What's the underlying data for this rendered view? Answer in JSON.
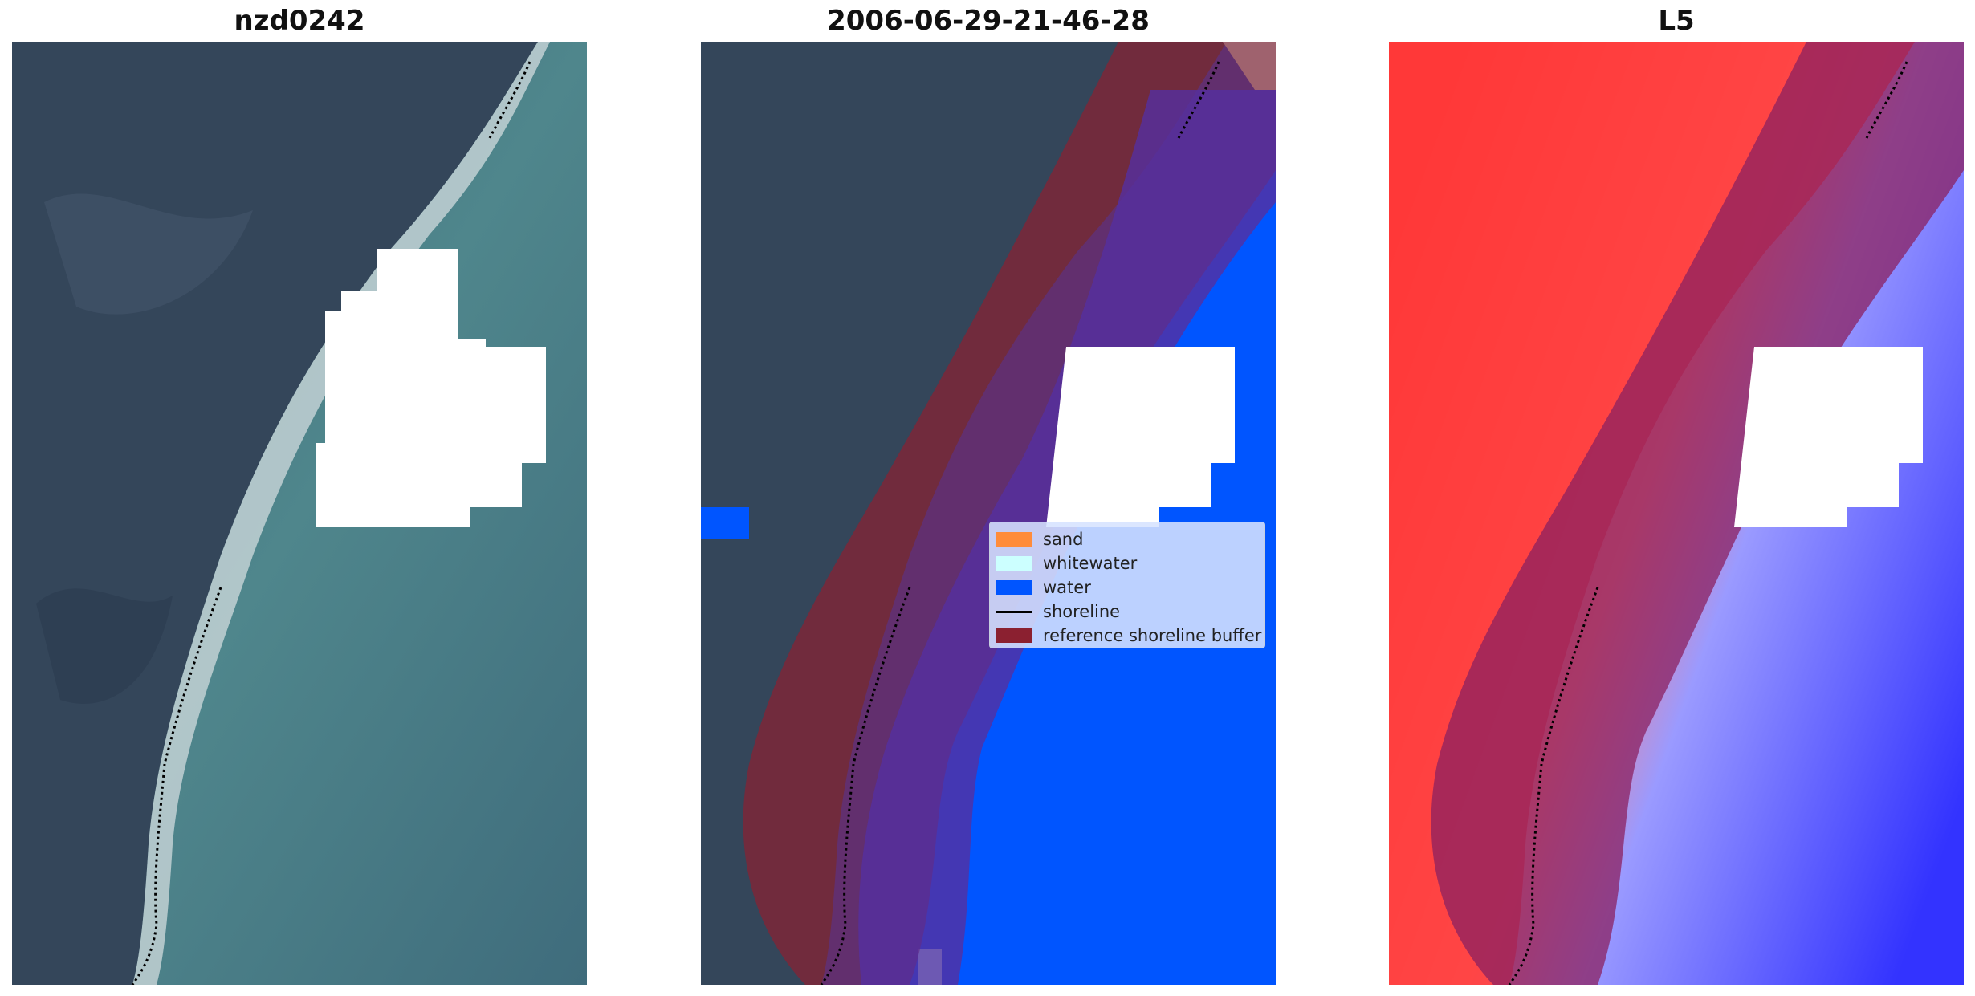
{
  "panels": [
    {
      "title": "nzd0242"
    },
    {
      "title": "2006-06-29-21-46-28"
    },
    {
      "title": "L5"
    }
  ],
  "legend": {
    "items": [
      {
        "label": "sand",
        "color": "#ff8c3a"
      },
      {
        "label": "whitewater",
        "color": "#ccffff"
      },
      {
        "label": "water",
        "color": "#0055ff"
      },
      {
        "label": "shoreline",
        "color": "#000000"
      },
      {
        "label": "reference shoreline buffer",
        "color": "#8b2030"
      }
    ]
  },
  "colors": {
    "land_dark": "#3a4a5a",
    "sea_teal": "#4d7f86",
    "water_class": "#0055ff",
    "buffer": "#8b2030",
    "index_red": "#ff2a2a",
    "index_blue": "#3333ff",
    "cloud_mask": "#ffffff"
  }
}
